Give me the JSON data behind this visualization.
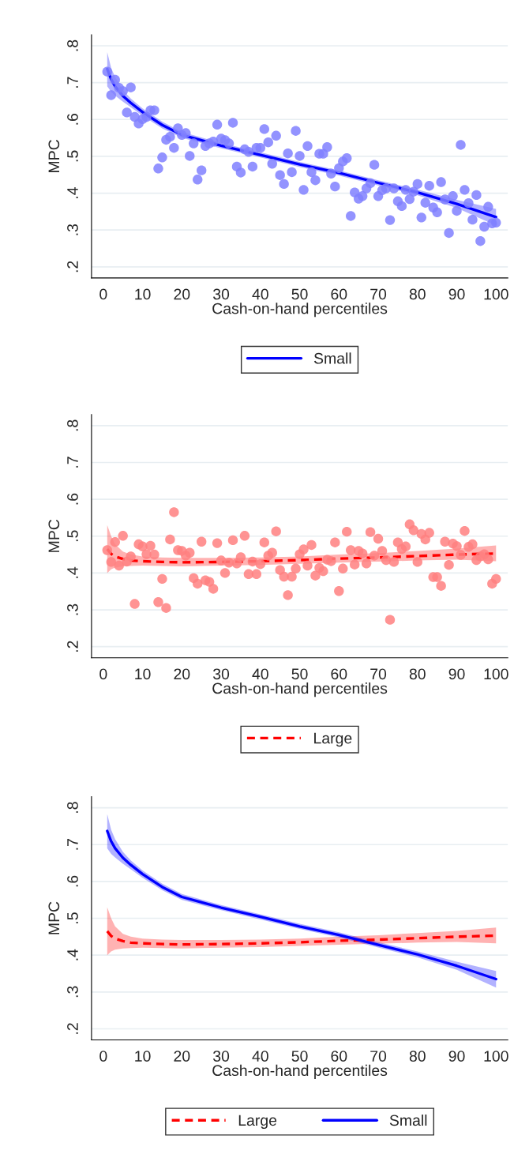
{
  "chart_data": [
    {
      "type": "scatter",
      "xlabel": "Cash-on-hand percentiles",
      "ylabel": "MPC",
      "xlim": [
        -3,
        103
      ],
      "ylim": [
        0.17,
        0.83
      ],
      "xticks": [
        0,
        10,
        20,
        30,
        40,
        50,
        60,
        70,
        80,
        90,
        100
      ],
      "yticks": [
        {
          "value": 0.2,
          "label": ".2"
        },
        {
          "value": 0.3,
          "label": ".3"
        },
        {
          "value": 0.4,
          "label": ".4"
        },
        {
          "value": 0.5,
          "label": ".5"
        },
        {
          "value": 0.6,
          "label": ".6"
        },
        {
          "value": 0.7,
          "label": ".7"
        },
        {
          "value": 0.8,
          "label": ".8"
        }
      ],
      "grid": "y",
      "legend": "bottom",
      "x": [
        1,
        2,
        3,
        4,
        5,
        6,
        7,
        8,
        9,
        10,
        11,
        12,
        13,
        14,
        15,
        16,
        17,
        18,
        19,
        20,
        21,
        22,
        23,
        24,
        25,
        26,
        27,
        28,
        29,
        30,
        31,
        32,
        33,
        34,
        35,
        36,
        37,
        38,
        39,
        40,
        41,
        42,
        43,
        44,
        45,
        46,
        47,
        48,
        49,
        50,
        51,
        52,
        53,
        54,
        55,
        56,
        57,
        58,
        59,
        60,
        61,
        62,
        63,
        64,
        65,
        66,
        67,
        68,
        69,
        70,
        71,
        72,
        73,
        74,
        75,
        76,
        77,
        78,
        79,
        80,
        81,
        82,
        83,
        84,
        85,
        86,
        87,
        88,
        89,
        90,
        91,
        92,
        93,
        94,
        95,
        96,
        97,
        98,
        99,
        100
      ],
      "series": [
        {
          "type": "scatter",
          "marker": "circle",
          "color": "#8080ff",
          "values": [
            0.73,
            0.666,
            0.708,
            0.686,
            0.677,
            0.619,
            0.687,
            0.607,
            0.589,
            0.601,
            0.607,
            0.625,
            0.625,
            0.467,
            0.497,
            0.545,
            0.553,
            0.523,
            0.576,
            0.558,
            0.563,
            0.501,
            0.535,
            0.437,
            0.462,
            0.528,
            0.535,
            0.54,
            0.586,
            0.548,
            0.544,
            0.535,
            0.591,
            0.472,
            0.456,
            0.519,
            0.512,
            0.472,
            0.523,
            0.523,
            0.574,
            0.538,
            0.48,
            0.556,
            0.449,
            0.425,
            0.508,
            0.457,
            0.569,
            0.501,
            0.409,
            0.528,
            0.457,
            0.435,
            0.507,
            0.507,
            0.525,
            0.453,
            0.418,
            0.468,
            0.486,
            0.495,
            0.338,
            0.402,
            0.385,
            0.392,
            0.413,
            0.427,
            0.477,
            0.392,
            0.408,
            0.413,
            0.327,
            0.413,
            0.378,
            0.365,
            0.409,
            0.384,
            0.404,
            0.425,
            0.334,
            0.374,
            0.42,
            0.361,
            0.348,
            0.43,
            0.383,
            0.292,
            0.392,
            0.352,
            0.531,
            0.409,
            0.373,
            0.328,
            0.395,
            0.27,
            0.309,
            0.363,
            0.318,
            0.32
          ]
        },
        {
          "type": "line",
          "name": "Small",
          "color": "#0000ff",
          "line_style": "solid",
          "x": [
            1,
            2,
            3,
            5,
            7,
            10,
            15,
            20,
            30,
            40,
            50,
            60,
            70,
            80,
            90,
            100
          ],
          "values": [
            0.737,
            0.709,
            0.69,
            0.664,
            0.645,
            0.62,
            0.585,
            0.558,
            0.529,
            0.504,
            0.478,
            0.455,
            0.428,
            0.402,
            0.371,
            0.335
          ],
          "lower": [
            0.69,
            0.675,
            0.665,
            0.648,
            0.633,
            0.61,
            0.576,
            0.55,
            0.522,
            0.497,
            0.471,
            0.448,
            0.421,
            0.394,
            0.36,
            0.312
          ],
          "upper": [
            0.783,
            0.74,
            0.715,
            0.68,
            0.657,
            0.63,
            0.594,
            0.566,
            0.536,
            0.511,
            0.485,
            0.462,
            0.435,
            0.41,
            0.382,
            0.357
          ]
        }
      ]
    },
    {
      "type": "scatter",
      "xlabel": "Cash-on-hand percentiles",
      "ylabel": "MPC",
      "xlim": [
        -3,
        103
      ],
      "ylim": [
        0.17,
        0.83
      ],
      "xticks": [
        0,
        10,
        20,
        30,
        40,
        50,
        60,
        70,
        80,
        90,
        100
      ],
      "yticks": [
        {
          "value": 0.2,
          "label": ".2"
        },
        {
          "value": 0.3,
          "label": ".3"
        },
        {
          "value": 0.4,
          "label": ".4"
        },
        {
          "value": 0.5,
          "label": ".5"
        },
        {
          "value": 0.6,
          "label": ".6"
        },
        {
          "value": 0.7,
          "label": ".7"
        },
        {
          "value": 0.8,
          "label": ".8"
        }
      ],
      "grid": "y",
      "legend": "bottom",
      "x": [
        1,
        2,
        3,
        4,
        5,
        6,
        7,
        8,
        9,
        10,
        11,
        12,
        13,
        14,
        15,
        16,
        17,
        18,
        19,
        20,
        21,
        22,
        23,
        24,
        25,
        26,
        27,
        28,
        29,
        30,
        31,
        32,
        33,
        34,
        35,
        36,
        37,
        38,
        39,
        40,
        41,
        42,
        43,
        44,
        45,
        46,
        47,
        48,
        49,
        50,
        51,
        52,
        53,
        54,
        55,
        56,
        57,
        58,
        59,
        60,
        61,
        62,
        63,
        64,
        65,
        66,
        67,
        68,
        69,
        70,
        71,
        72,
        73,
        74,
        75,
        76,
        77,
        78,
        79,
        80,
        81,
        82,
        83,
        84,
        85,
        86,
        87,
        88,
        89,
        90,
        91,
        92,
        93,
        94,
        95,
        96,
        97,
        98,
        99,
        100
      ],
      "series": [
        {
          "type": "scatter",
          "marker": "circle",
          "color": "#ff8080",
          "values": [
            0.462,
            0.43,
            0.484,
            0.42,
            0.501,
            0.431,
            0.445,
            0.316,
            0.478,
            0.472,
            0.451,
            0.474,
            0.45,
            0.321,
            0.384,
            0.305,
            0.491,
            0.565,
            0.462,
            0.46,
            0.447,
            0.455,
            0.386,
            0.371,
            0.485,
            0.38,
            0.376,
            0.357,
            0.481,
            0.434,
            0.4,
            0.428,
            0.489,
            0.426,
            0.443,
            0.501,
            0.397,
            0.431,
            0.397,
            0.424,
            0.483,
            0.447,
            0.455,
            0.513,
            0.408,
            0.39,
            0.34,
            0.39,
            0.412,
            0.451,
            0.464,
            0.42,
            0.476,
            0.393,
            0.414,
            0.405,
            0.436,
            0.432,
            0.483,
            0.351,
            0.412,
            0.512,
            0.462,
            0.423,
            0.46,
            0.453,
            0.426,
            0.511,
            0.447,
            0.493,
            0.46,
            0.435,
            0.273,
            0.43,
            0.483,
            0.465,
            0.472,
            0.532,
            0.516,
            0.43,
            0.506,
            0.491,
            0.509,
            0.389,
            0.389,
            0.365,
            0.485,
            0.422,
            0.48,
            0.473,
            0.449,
            0.514,
            0.471,
            0.478,
            0.435,
            0.445,
            0.451,
            0.437,
            0.371,
            0.384
          ]
        },
        {
          "type": "line",
          "name": "Large",
          "color": "#ff0000",
          "line_style": "dashed",
          "x": [
            1,
            2,
            3,
            5,
            7,
            10,
            15,
            20,
            30,
            40,
            50,
            60,
            70,
            80,
            90,
            100
          ],
          "values": [
            0.465,
            0.452,
            0.445,
            0.438,
            0.434,
            0.432,
            0.43,
            0.429,
            0.43,
            0.432,
            0.435,
            0.439,
            0.442,
            0.446,
            0.45,
            0.453
          ],
          "lower": [
            0.4,
            0.41,
            0.415,
            0.418,
            0.419,
            0.42,
            0.419,
            0.418,
            0.42,
            0.422,
            0.425,
            0.428,
            0.431,
            0.434,
            0.436,
            0.432
          ],
          "upper": [
            0.53,
            0.5,
            0.478,
            0.458,
            0.45,
            0.445,
            0.442,
            0.441,
            0.441,
            0.442,
            0.445,
            0.45,
            0.454,
            0.46,
            0.466,
            0.475
          ]
        }
      ]
    },
    {
      "type": "line",
      "xlabel": "Cash-on-hand percentiles",
      "ylabel": "MPC",
      "xlim": [
        -3,
        103
      ],
      "ylim": [
        0.17,
        0.83
      ],
      "xticks": [
        0,
        10,
        20,
        30,
        40,
        50,
        60,
        70,
        80,
        90,
        100
      ],
      "yticks": [
        {
          "value": 0.2,
          "label": ".2"
        },
        {
          "value": 0.3,
          "label": ".3"
        },
        {
          "value": 0.4,
          "label": ".4"
        },
        {
          "value": 0.5,
          "label": ".5"
        },
        {
          "value": 0.6,
          "label": ".6"
        },
        {
          "value": 0.7,
          "label": ".7"
        },
        {
          "value": 0.8,
          "label": ".8"
        }
      ],
      "grid": "y",
      "legend": "bottom",
      "series": [
        {
          "name": "Large",
          "color": "#ff0000",
          "line_style": "dashed",
          "x": [
            1,
            2,
            3,
            5,
            7,
            10,
            15,
            20,
            30,
            40,
            50,
            60,
            70,
            80,
            90,
            100
          ],
          "values": [
            0.465,
            0.452,
            0.445,
            0.438,
            0.434,
            0.432,
            0.43,
            0.429,
            0.43,
            0.432,
            0.435,
            0.439,
            0.442,
            0.446,
            0.45,
            0.453
          ],
          "lower": [
            0.4,
            0.41,
            0.415,
            0.418,
            0.419,
            0.42,
            0.419,
            0.418,
            0.42,
            0.422,
            0.425,
            0.428,
            0.431,
            0.434,
            0.436,
            0.432
          ],
          "upper": [
            0.53,
            0.5,
            0.478,
            0.458,
            0.45,
            0.445,
            0.442,
            0.441,
            0.441,
            0.442,
            0.445,
            0.45,
            0.454,
            0.46,
            0.466,
            0.475
          ]
        },
        {
          "name": "Small",
          "color": "#0000ff",
          "line_style": "solid",
          "x": [
            1,
            2,
            3,
            5,
            7,
            10,
            15,
            20,
            30,
            40,
            50,
            60,
            70,
            80,
            90,
            100
          ],
          "values": [
            0.737,
            0.709,
            0.69,
            0.664,
            0.645,
            0.62,
            0.585,
            0.558,
            0.529,
            0.504,
            0.478,
            0.455,
            0.428,
            0.402,
            0.371,
            0.335
          ],
          "lower": [
            0.69,
            0.675,
            0.665,
            0.648,
            0.633,
            0.61,
            0.576,
            0.55,
            0.522,
            0.497,
            0.471,
            0.448,
            0.421,
            0.394,
            0.36,
            0.312
          ],
          "upper": [
            0.783,
            0.74,
            0.715,
            0.68,
            0.657,
            0.63,
            0.594,
            0.566,
            0.536,
            0.511,
            0.485,
            0.462,
            0.435,
            0.41,
            0.382,
            0.357
          ]
        }
      ]
    }
  ]
}
